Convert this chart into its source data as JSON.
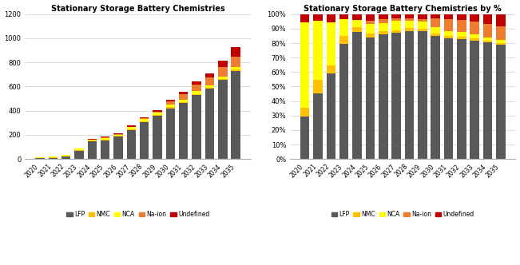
{
  "years": [
    "2020",
    "2021",
    "2022",
    "2023",
    "2024",
    "2025",
    "2026",
    "2027",
    "2028",
    "2029",
    "2030",
    "2031",
    "2032",
    "2033",
    "2034",
    "2035"
  ],
  "LFP": [
    5,
    10,
    20,
    70,
    145,
    155,
    185,
    240,
    305,
    355,
    420,
    465,
    530,
    580,
    655,
    730
  ],
  "NMC": [
    1,
    2,
    2,
    5,
    5,
    5,
    5,
    5,
    8,
    8,
    8,
    8,
    10,
    10,
    10,
    12
  ],
  "NCA": [
    10,
    9,
    10,
    10,
    8,
    12,
    12,
    18,
    18,
    20,
    20,
    20,
    20,
    20,
    20,
    20
  ],
  "Na-ion": [
    0,
    0,
    0,
    0,
    0,
    5,
    5,
    5,
    5,
    5,
    30,
    45,
    55,
    65,
    75,
    85
  ],
  "Undefined": [
    1,
    1,
    2,
    3,
    7,
    8,
    8,
    8,
    10,
    15,
    15,
    20,
    25,
    35,
    55,
    80
  ],
  "colors": {
    "LFP": "#595959",
    "NMC": "#ffc000",
    "NCA": "#ffff00",
    "Na-ion": "#ed7d31",
    "Undefined": "#c00000"
  },
  "title_left": "Stationary Storage Battery Chemistries",
  "title_right": "Stationary Storage Battery Chemistries by %",
  "legend_labels": [
    "LFP",
    "NMC",
    "NCA",
    "Na-ion",
    "Undefined"
  ],
  "ylim_left": [
    0,
    1200
  ],
  "yticks_left": [
    0,
    200,
    400,
    600,
    800,
    1000,
    1200
  ],
  "figsize": [
    6.51,
    3.32
  ],
  "dpi": 100
}
